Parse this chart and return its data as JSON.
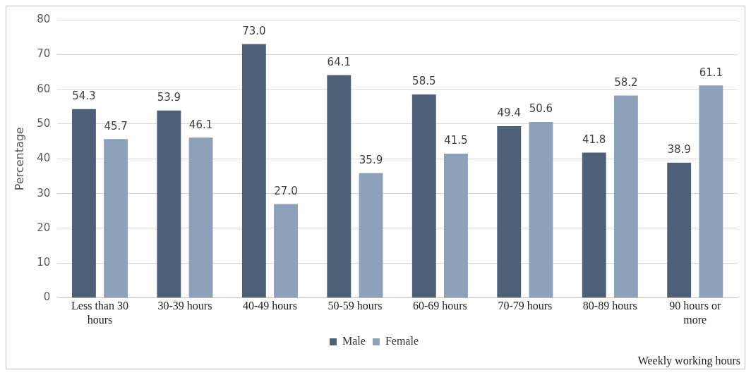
{
  "chart_data": {
    "type": "bar",
    "xlabel": "Weekly working hours",
    "ylabel": "Percentage",
    "categories": [
      "Less than 30 hours",
      "30-39 hours",
      "40-49 hours",
      "50-59 hours",
      "60-69 hours",
      "70-79 hours",
      "80-89 hours",
      "90 hours or more"
    ],
    "series": [
      {
        "name": "Male",
        "color": "#4e5f78",
        "values": [
          54.3,
          53.9,
          73.0,
          64.1,
          58.5,
          49.4,
          41.8,
          38.9
        ],
        "value_labels": [
          "54.3",
          "53.9",
          "73.0",
          "64.1",
          "58.5",
          "49.4",
          "41.8",
          "38.9"
        ]
      },
      {
        "name": "Female",
        "color": "#8ea1ba",
        "values": [
          45.7,
          46.1,
          27.0,
          35.9,
          41.5,
          50.6,
          58.2,
          61.1
        ],
        "value_labels": [
          "45.7",
          "46.1",
          "27.0",
          "35.9",
          "41.5",
          "50.6",
          "58.2",
          "61.1"
        ]
      }
    ],
    "ylim": [
      0,
      80
    ],
    "yticks": [
      0,
      10,
      20,
      30,
      40,
      50,
      60,
      70,
      80
    ],
    "grid": "y",
    "legend": "bottom"
  }
}
